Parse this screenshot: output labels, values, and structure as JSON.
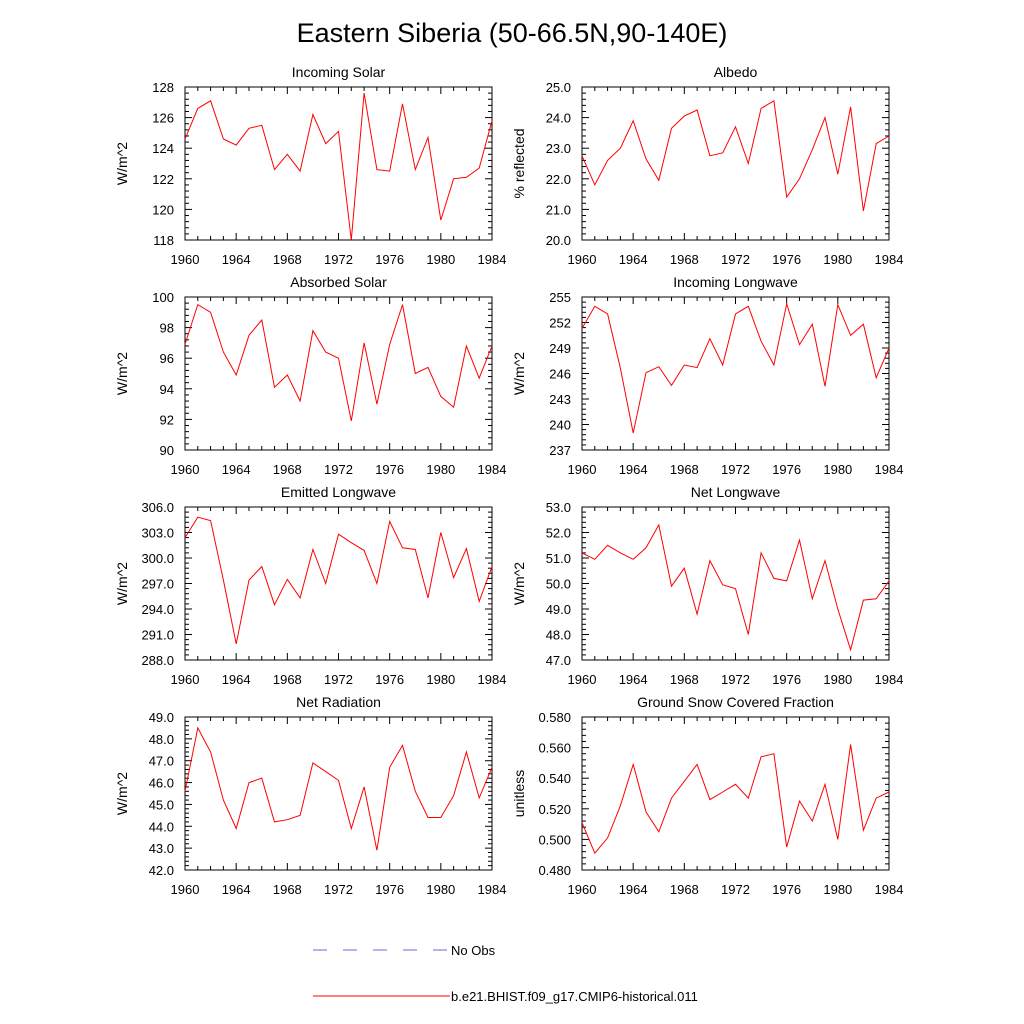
{
  "figure": {
    "title": "Eastern Siberia (50-66.5N,90-140E)"
  },
  "legend": {
    "obs_label": "No Obs",
    "obs_color": "#6a6ad8",
    "model_label": "b.e21.BHIST.f09_g17.CMIP6-historical.011",
    "model_color": "#ff0000"
  },
  "chart_data": [
    {
      "type": "line",
      "title": "Incoming Solar",
      "ylabel": "W/m^2",
      "xlim": [
        1960,
        1984
      ],
      "ylim": [
        118,
        128
      ],
      "yticks": [
        "118",
        "120",
        "122",
        "124",
        "126",
        "128"
      ],
      "xticks": [
        "1960",
        "1964",
        "1968",
        "1972",
        "1976",
        "1980",
        "1984"
      ],
      "x": [
        1960,
        1961,
        1962,
        1963,
        1964,
        1965,
        1966,
        1967,
        1968,
        1969,
        1970,
        1971,
        1972,
        1973,
        1974,
        1975,
        1976,
        1977,
        1978,
        1979,
        1980,
        1981,
        1982,
        1983,
        1984
      ],
      "series": [
        {
          "values": [
            124.6,
            126.6,
            127.1,
            124.6,
            124.2,
            125.3,
            125.5,
            122.6,
            123.6,
            122.5,
            126.2,
            124.3,
            125.1,
            118.0,
            127.6,
            122.6,
            122.5,
            126.9,
            122.6,
            124.7,
            119.3,
            122.0,
            122.1,
            122.7,
            125.8
          ]
        }
      ]
    },
    {
      "type": "line",
      "title": "Albedo",
      "ylabel": "% reflected",
      "xlim": [
        1960,
        1984
      ],
      "ylim": [
        20.0,
        25.0
      ],
      "yticks": [
        "20.0",
        "21.0",
        "22.0",
        "23.0",
        "24.0",
        "25.0"
      ],
      "xticks": [
        "1960",
        "1964",
        "1968",
        "1972",
        "1976",
        "1980",
        "1984"
      ],
      "x": [
        1960,
        1961,
        1962,
        1963,
        1964,
        1965,
        1966,
        1967,
        1968,
        1969,
        1970,
        1971,
        1972,
        1973,
        1974,
        1975,
        1976,
        1977,
        1978,
        1979,
        1980,
        1981,
        1982,
        1983,
        1984
      ],
      "series": [
        {
          "values": [
            22.75,
            21.8,
            22.6,
            23.0,
            23.9,
            22.65,
            21.95,
            23.65,
            24.05,
            24.25,
            22.75,
            22.85,
            23.7,
            22.5,
            24.3,
            24.55,
            21.4,
            22.0,
            22.95,
            24.0,
            22.15,
            24.35,
            20.95,
            23.15,
            23.4
          ]
        }
      ]
    },
    {
      "type": "line",
      "title": "Absorbed Solar",
      "ylabel": "W/m^2",
      "xlim": [
        1960,
        1984
      ],
      "ylim": [
        90,
        100
      ],
      "yticks": [
        "90",
        "92",
        "94",
        "96",
        "98",
        "100"
      ],
      "xticks": [
        "1960",
        "1964",
        "1968",
        "1972",
        "1976",
        "1980",
        "1984"
      ],
      "x": [
        1960,
        1961,
        1962,
        1963,
        1964,
        1965,
        1966,
        1967,
        1968,
        1969,
        1970,
        1971,
        1972,
        1973,
        1974,
        1975,
        1976,
        1977,
        1978,
        1979,
        1980,
        1981,
        1982,
        1983,
        1984
      ],
      "series": [
        {
          "values": [
            96.9,
            99.5,
            99.0,
            96.4,
            94.9,
            97.5,
            98.5,
            94.1,
            94.9,
            93.2,
            97.8,
            96.4,
            96.0,
            91.9,
            97.0,
            93.0,
            96.9,
            99.5,
            95.0,
            95.4,
            93.5,
            92.8,
            96.8,
            94.7,
            96.8
          ]
        }
      ]
    },
    {
      "type": "line",
      "title": "Incoming Longwave",
      "ylabel": "W/m^2",
      "xlim": [
        1960,
        1984
      ],
      "ylim": [
        237,
        255
      ],
      "yticks": [
        "237",
        "240",
        "243",
        "246",
        "249",
        "252",
        "255"
      ],
      "xticks": [
        "1960",
        "1964",
        "1968",
        "1972",
        "1976",
        "1980",
        "1984"
      ],
      "x": [
        1960,
        1961,
        1962,
        1963,
        1964,
        1965,
        1966,
        1967,
        1968,
        1969,
        1970,
        1971,
        1972,
        1973,
        1974,
        1975,
        1976,
        1977,
        1978,
        1979,
        1980,
        1981,
        1982,
        1983,
        1984
      ],
      "series": [
        {
          "values": [
            251.3,
            253.9,
            253.0,
            246.6,
            239.0,
            246.1,
            246.8,
            244.6,
            247.0,
            246.7,
            250.1,
            247.0,
            253.0,
            253.9,
            249.8,
            247.0,
            254.2,
            249.4,
            251.8,
            244.5,
            254.1,
            250.5,
            251.8,
            245.5,
            249.0
          ]
        }
      ]
    },
    {
      "type": "line",
      "title": "Emitted Longwave",
      "ylabel": "W/m^2",
      "xlim": [
        1960,
        1984
      ],
      "ylim": [
        288.0,
        306.0
      ],
      "yticks": [
        "288.0",
        "291.0",
        "294.0",
        "297.0",
        "300.0",
        "303.0",
        "306.0"
      ],
      "xticks": [
        "1960",
        "1964",
        "1968",
        "1972",
        "1976",
        "1980",
        "1984"
      ],
      "x": [
        1960,
        1961,
        1962,
        1963,
        1964,
        1965,
        1966,
        1967,
        1968,
        1969,
        1970,
        1971,
        1972,
        1973,
        1974,
        1975,
        1976,
        1977,
        1978,
        1979,
        1980,
        1981,
        1982,
        1983,
        1984
      ],
      "series": [
        {
          "values": [
            302.4,
            304.8,
            304.4,
            297.4,
            289.9,
            297.4,
            299.0,
            294.5,
            297.5,
            295.3,
            301.0,
            297.0,
            302.8,
            301.8,
            300.9,
            297.0,
            304.3,
            301.2,
            301.0,
            295.3,
            303.0,
            297.7,
            301.1,
            294.9,
            299.0
          ]
        }
      ]
    },
    {
      "type": "line",
      "title": "Net Longwave",
      "ylabel": "W/m^2",
      "xlim": [
        1960,
        1984
      ],
      "ylim": [
        47.0,
        53.0
      ],
      "yticks": [
        "47.0",
        "48.0",
        "49.0",
        "50.0",
        "51.0",
        "52.0",
        "53.0"
      ],
      "xticks": [
        "1960",
        "1964",
        "1968",
        "1972",
        "1976",
        "1980",
        "1984"
      ],
      "x": [
        1960,
        1961,
        1962,
        1963,
        1964,
        1965,
        1966,
        1967,
        1968,
        1969,
        1970,
        1971,
        1972,
        1973,
        1974,
        1975,
        1976,
        1977,
        1978,
        1979,
        1980,
        1981,
        1982,
        1983,
        1984
      ],
      "series": [
        {
          "values": [
            51.2,
            50.95,
            51.5,
            51.2,
            50.95,
            51.4,
            52.3,
            49.9,
            50.6,
            48.8,
            50.9,
            49.95,
            49.8,
            48.0,
            51.2,
            50.2,
            50.1,
            51.7,
            49.4,
            50.9,
            49.0,
            47.4,
            49.35,
            49.4,
            50.1
          ]
        }
      ]
    },
    {
      "type": "line",
      "title": "Net Radiation",
      "ylabel": "W/m^2",
      "xlim": [
        1960,
        1984
      ],
      "ylim": [
        42.0,
        49.0
      ],
      "yticks": [
        "42.0",
        "43.0",
        "44.0",
        "45.0",
        "46.0",
        "47.0",
        "48.0",
        "49.0"
      ],
      "xticks": [
        "1960",
        "1964",
        "1968",
        "1972",
        "1976",
        "1980",
        "1984"
      ],
      "x": [
        1960,
        1961,
        1962,
        1963,
        1964,
        1965,
        1966,
        1967,
        1968,
        1969,
        1970,
        1971,
        1972,
        1973,
        1974,
        1975,
        1976,
        1977,
        1978,
        1979,
        1980,
        1981,
        1982,
        1983,
        1984
      ],
      "series": [
        {
          "values": [
            45.6,
            48.5,
            47.4,
            45.2,
            43.9,
            46.0,
            46.2,
            44.2,
            44.3,
            44.5,
            46.9,
            46.5,
            46.1,
            43.9,
            45.8,
            42.9,
            46.7,
            47.7,
            45.6,
            44.4,
            44.4,
            45.4,
            47.4,
            45.3,
            46.7
          ]
        }
      ]
    },
    {
      "type": "line",
      "title": "Ground Snow Covered Fraction",
      "ylabel": "unitless",
      "xlim": [
        1960,
        1984
      ],
      "ylim": [
        0.48,
        0.58
      ],
      "yticks": [
        "0.480",
        "0.500",
        "0.520",
        "0.540",
        "0.560",
        "0.580"
      ],
      "xticks": [
        "1960",
        "1964",
        "1968",
        "1972",
        "1976",
        "1980",
        "1984"
      ],
      "x": [
        1960,
        1961,
        1962,
        1963,
        1964,
        1965,
        1966,
        1967,
        1968,
        1969,
        1970,
        1971,
        1972,
        1973,
        1974,
        1975,
        1976,
        1977,
        1978,
        1979,
        1980,
        1981,
        1982,
        1983,
        1984
      ],
      "series": [
        {
          "values": [
            0.511,
            0.491,
            0.501,
            0.522,
            0.549,
            0.518,
            0.505,
            0.527,
            0.538,
            0.549,
            0.526,
            0.531,
            0.536,
            0.527,
            0.554,
            0.556,
            0.495,
            0.525,
            0.512,
            0.536,
            0.5,
            0.562,
            0.506,
            0.527,
            0.531
          ]
        }
      ]
    }
  ]
}
